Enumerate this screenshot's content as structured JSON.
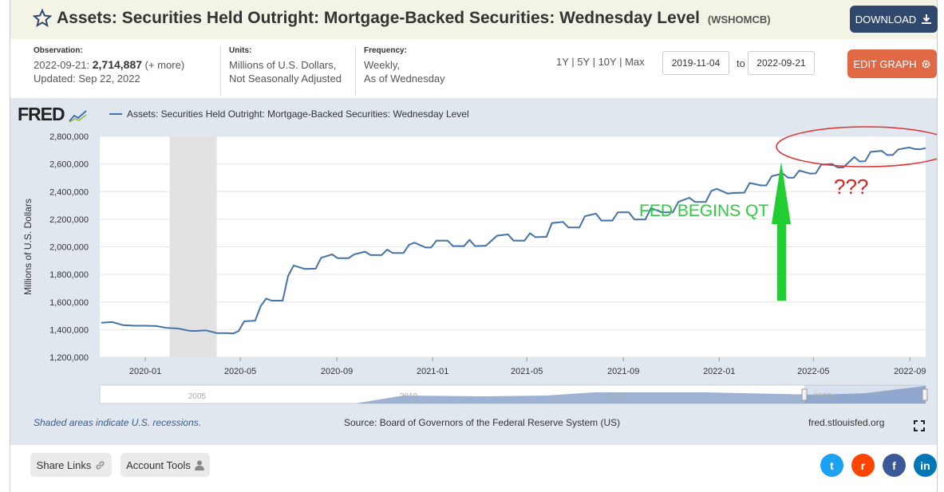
{
  "header": {
    "title": "Assets: Securities Held Outright: Mortgage-Backed Securities: Wednesday Level",
    "series_code": "(WSHOMCB)",
    "download_label": "DOWNLOAD",
    "star_icon": "star-outline-icon",
    "download_icon": "download-icon"
  },
  "meta": {
    "observation_label": "Observation:",
    "observation_date": "2022-09-21:",
    "observation_value": "2,714,887",
    "observation_more": "(+ more)",
    "updated": "Updated: Sep 22, 2022",
    "units_label": "Units:",
    "units_line1": "Millions of U.S. Dollars,",
    "units_line2": "Not Seasonally Adjusted",
    "frequency_label": "Frequency:",
    "frequency_line1": "Weekly,",
    "frequency_line2": "As of Wednesday"
  },
  "controls": {
    "ranges": [
      "1Y",
      "5Y",
      "10Y",
      "Max"
    ],
    "start_date": "2019-11-04",
    "to_label": "to",
    "end_date": "2022-09-21",
    "edit_label": "EDIT GRAPH",
    "edit_icon": "gear-icon"
  },
  "chart_panel": {
    "logo": "FRED",
    "legend": "Assets: Securities Held Outright: Mortgage-Backed Securities: Wednesday Level",
    "recession_note": "Shaded areas indicate U.S. recessions.",
    "source": "Source: Board of Governors of the Federal Reserve System (US)",
    "site": "fred.stlouisfed.org",
    "fullscreen_icon": "fullscreen-icon"
  },
  "chart_data": {
    "type": "line",
    "title": "",
    "ylabel": "Millions of U.S. Dollars",
    "ylim": [
      1200000,
      2800000
    ],
    "yticks": [
      1200000,
      1400000,
      1600000,
      1800000,
      2000000,
      2200000,
      2400000,
      2600000,
      2800000
    ],
    "ytick_labels": [
      "1,200,000",
      "1,400,000",
      "1,600,000",
      "1,800,000",
      "2,000,000",
      "2,200,000",
      "2,400,000",
      "2,600,000",
      "2,800,000"
    ],
    "xlim": [
      "2019-11-04",
      "2022-09-21"
    ],
    "xticks": [
      "2020-01",
      "2020-05",
      "2020-09",
      "2021-01",
      "2021-05",
      "2021-09",
      "2022-01",
      "2022-05",
      "2022-09"
    ],
    "grid": true,
    "recession": [
      "2020-02",
      "2020-04"
    ],
    "series": [
      {
        "name": "Assets: Securities Held Outright: Mortgage-Backed Securities: Wednesday Level",
        "color": "#4572a7",
        "points": [
          [
            "2019-11-06",
            1450000
          ],
          [
            "2019-11-20",
            1455000
          ],
          [
            "2019-12-04",
            1432000
          ],
          [
            "2019-12-18",
            1428000
          ],
          [
            "2020-01-01",
            1428000
          ],
          [
            "2020-01-15",
            1426000
          ],
          [
            "2020-01-29",
            1412000
          ],
          [
            "2020-02-12",
            1408000
          ],
          [
            "2020-02-26",
            1392000
          ],
          [
            "2020-03-04",
            1390000
          ],
          [
            "2020-03-18",
            1395000
          ],
          [
            "2020-04-01",
            1375000
          ],
          [
            "2020-04-15",
            1375000
          ],
          [
            "2020-04-22",
            1372000
          ],
          [
            "2020-04-29",
            1390000
          ],
          [
            "2020-05-06",
            1460000
          ],
          [
            "2020-05-20",
            1465000
          ],
          [
            "2020-05-27",
            1570000
          ],
          [
            "2020-06-03",
            1625000
          ],
          [
            "2020-06-10",
            1610000
          ],
          [
            "2020-06-24",
            1610000
          ],
          [
            "2020-07-01",
            1790000
          ],
          [
            "2020-07-08",
            1865000
          ],
          [
            "2020-07-22",
            1840000
          ],
          [
            "2020-08-05",
            1842000
          ],
          [
            "2020-08-12",
            1920000
          ],
          [
            "2020-08-26",
            1945000
          ],
          [
            "2020-09-02",
            1918000
          ],
          [
            "2020-09-16",
            1918000
          ],
          [
            "2020-09-23",
            1945000
          ],
          [
            "2020-10-07",
            1965000
          ],
          [
            "2020-10-14",
            1940000
          ],
          [
            "2020-10-28",
            1940000
          ],
          [
            "2020-11-04",
            1980000
          ],
          [
            "2020-11-11",
            1955000
          ],
          [
            "2020-11-25",
            1955000
          ],
          [
            "2020-12-02",
            2015000
          ],
          [
            "2020-12-09",
            2030000
          ],
          [
            "2020-12-23",
            1995000
          ],
          [
            "2020-12-30",
            1995000
          ],
          [
            "2021-01-06",
            2045000
          ],
          [
            "2021-01-20",
            2045000
          ],
          [
            "2021-01-27",
            2005000
          ],
          [
            "2021-02-10",
            2005000
          ],
          [
            "2021-02-17",
            2050000
          ],
          [
            "2021-02-24",
            2005000
          ],
          [
            "2021-03-10",
            2008000
          ],
          [
            "2021-03-24",
            2080000
          ],
          [
            "2021-04-07",
            2090000
          ],
          [
            "2021-04-14",
            2045000
          ],
          [
            "2021-04-28",
            2045000
          ],
          [
            "2021-05-05",
            2098000
          ],
          [
            "2021-05-12",
            2070000
          ],
          [
            "2021-05-26",
            2072000
          ],
          [
            "2021-06-02",
            2172000
          ],
          [
            "2021-06-16",
            2180000
          ],
          [
            "2021-06-23",
            2140000
          ],
          [
            "2021-07-07",
            2140000
          ],
          [
            "2021-07-14",
            2222000
          ],
          [
            "2021-07-28",
            2240000
          ],
          [
            "2021-08-04",
            2190000
          ],
          [
            "2021-08-18",
            2190000
          ],
          [
            "2021-08-25",
            2250000
          ],
          [
            "2021-09-08",
            2250000
          ],
          [
            "2021-09-15",
            2198000
          ],
          [
            "2021-09-29",
            2198000
          ],
          [
            "2021-10-06",
            2280000
          ],
          [
            "2021-10-20",
            2250000
          ],
          [
            "2021-11-03",
            2250000
          ],
          [
            "2021-11-10",
            2325000
          ],
          [
            "2021-11-24",
            2355000
          ],
          [
            "2021-12-01",
            2325000
          ],
          [
            "2021-12-15",
            2325000
          ],
          [
            "2021-12-22",
            2405000
          ],
          [
            "2021-12-29",
            2420000
          ],
          [
            "2022-01-12",
            2385000
          ],
          [
            "2022-01-19",
            2390000
          ],
          [
            "2022-02-02",
            2392000
          ],
          [
            "2022-02-09",
            2462000
          ],
          [
            "2022-02-23",
            2445000
          ],
          [
            "2022-03-02",
            2445000
          ],
          [
            "2022-03-09",
            2512000
          ],
          [
            "2022-03-23",
            2530000
          ],
          [
            "2022-03-30",
            2500000
          ],
          [
            "2022-04-06",
            2500000
          ],
          [
            "2022-04-13",
            2552000
          ],
          [
            "2022-04-27",
            2530000
          ],
          [
            "2022-05-04",
            2532000
          ],
          [
            "2022-05-11",
            2595000
          ],
          [
            "2022-05-25",
            2600000
          ],
          [
            "2022-06-01",
            2575000
          ],
          [
            "2022-06-08",
            2575000
          ],
          [
            "2022-06-22",
            2650000
          ],
          [
            "2022-06-29",
            2618000
          ],
          [
            "2022-07-06",
            2620000
          ],
          [
            "2022-07-13",
            2688000
          ],
          [
            "2022-07-27",
            2695000
          ],
          [
            "2022-08-03",
            2665000
          ],
          [
            "2022-08-10",
            2665000
          ],
          [
            "2022-08-17",
            2705000
          ],
          [
            "2022-08-31",
            2720000
          ],
          [
            "2022-09-07",
            2708000
          ],
          [
            "2022-09-14",
            2706000
          ],
          [
            "2022-09-21",
            2714887
          ]
        ]
      }
    ],
    "annotations": [
      {
        "text": "FED BEGINS QT",
        "color": "#2ecc40"
      },
      {
        "text": "???",
        "color": "#dd2222"
      }
    ]
  },
  "navigator": {
    "year_labels": [
      "2005",
      "2010",
      "2015",
      "2020"
    ]
  },
  "bottom": {
    "share_links": "Share Links",
    "account_tools": "Account Tools",
    "link_icon": "link-icon",
    "user_icon": "user-icon",
    "social": [
      {
        "name": "twitter",
        "glyph": "t",
        "color": "#1da1f2"
      },
      {
        "name": "reddit",
        "glyph": "r",
        "color": "#ff4500"
      },
      {
        "name": "facebook",
        "glyph": "f",
        "color": "#3b5998"
      },
      {
        "name": "linkedin",
        "glyph": "in",
        "color": "#0077b5"
      }
    ]
  }
}
